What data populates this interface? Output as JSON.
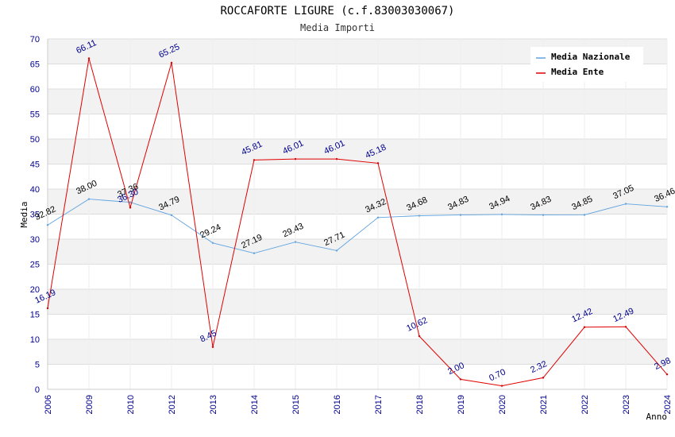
{
  "chart_data": {
    "type": "line",
    "title": "ROCCAFORTE LIGURE (c.f.83003030067)",
    "subtitle": "Media Importi",
    "xlabel": "Anno",
    "ylabel": "Media",
    "ylim": [
      0,
      70
    ],
    "yticks": [
      "0",
      "5",
      "10",
      "15",
      "20",
      "25",
      "30",
      "35",
      "40",
      "45",
      "50",
      "55",
      "60",
      "65",
      "70"
    ],
    "categories": [
      "2006",
      "2009",
      "2010",
      "2012",
      "2013",
      "2014",
      "2015",
      "2016",
      "2017",
      "2018",
      "2019",
      "2020",
      "2021",
      "2022",
      "2023",
      "2024"
    ],
    "grid": true,
    "legend_position": "top-right",
    "series": [
      {
        "name": "Media Nazionale",
        "color": "#5fa3e0",
        "values": [
          32.82,
          38.0,
          37.36,
          34.79,
          29.24,
          27.19,
          29.43,
          27.71,
          34.32,
          34.68,
          34.83,
          34.94,
          34.83,
          34.85,
          37.05,
          36.46
        ],
        "labels": [
          "32.82",
          "38.00",
          "37.36",
          "34.79",
          "29.24",
          "27.19",
          "29.43",
          "27.71",
          "34.32",
          "34.68",
          "34.83",
          "34.94",
          "34.83",
          "34.85",
          "37.05",
          "36.46"
        ]
      },
      {
        "name": "Media Ente",
        "color": "#e00000",
        "values": [
          16.19,
          66.11,
          36.3,
          65.25,
          8.45,
          45.81,
          46.01,
          46.01,
          45.18,
          10.62,
          2.0,
          0.7,
          2.32,
          12.42,
          12.49,
          2.98
        ],
        "labels": [
          "16.19",
          "66.11",
          "36.30",
          "65.25",
          "8.45",
          "45.81",
          "46.01",
          "46.01",
          "45.18",
          "10.62",
          "2.00",
          "0.70",
          "2.32",
          "12.42",
          "12.49",
          "2.98"
        ]
      }
    ]
  }
}
